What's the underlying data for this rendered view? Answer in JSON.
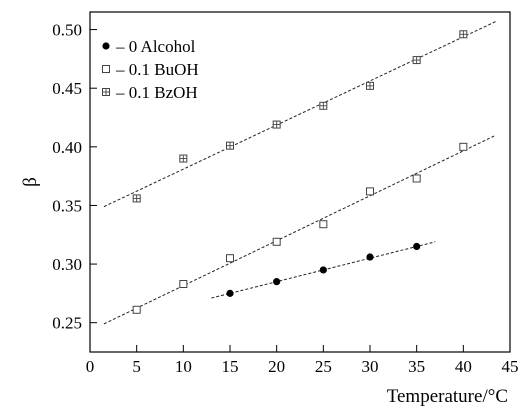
{
  "chart_data": {
    "type": "scatter",
    "xlabel": "Temperature/°C",
    "ylabel": "β",
    "xlim": [
      0,
      45
    ],
    "ylim": [
      0.225,
      0.515
    ],
    "x_ticks": [
      0,
      5,
      10,
      15,
      20,
      25,
      30,
      35,
      40,
      45
    ],
    "y_ticks": [
      0.25,
      0.3,
      0.35,
      0.4,
      0.45,
      0.5
    ],
    "x_tick_labels": [
      "0",
      "5",
      "10",
      "15",
      "20",
      "25",
      "30",
      "35",
      "40",
      "45"
    ],
    "y_tick_labels": [
      "0.25",
      "0.30",
      "0.35",
      "0.40",
      "0.45",
      "0.50"
    ],
    "grid": false,
    "legend_position": "top-left",
    "series": [
      {
        "name": "– 0 Alcohol",
        "marker": "filled-circle",
        "x": [
          15,
          20,
          25,
          30,
          35
        ],
        "y": [
          0.275,
          0.285,
          0.295,
          0.306,
          0.315
        ],
        "fit_line": {
          "x": [
            13,
            37
          ],
          "y": [
            0.271,
            0.319
          ]
        }
      },
      {
        "name": "– 0.1 BuOH",
        "marker": "open-square",
        "x": [
          5,
          10,
          15,
          20,
          25,
          30,
          35,
          40
        ],
        "y": [
          0.261,
          0.283,
          0.305,
          0.319,
          0.334,
          0.362,
          0.373,
          0.4
        ],
        "fit_line": {
          "x": [
            1.5,
            43.5
          ],
          "y": [
            0.249,
            0.41
          ]
        }
      },
      {
        "name": "– 0.1 BzOH",
        "marker": "crossed-square",
        "x": [
          5,
          10,
          15,
          20,
          25,
          30,
          35,
          40
        ],
        "y": [
          0.356,
          0.39,
          0.401,
          0.419,
          0.435,
          0.452,
          0.474,
          0.496
        ],
        "fit_line": {
          "x": [
            1.5,
            43.5
          ],
          "y": [
            0.349,
            0.507
          ]
        }
      }
    ]
  }
}
